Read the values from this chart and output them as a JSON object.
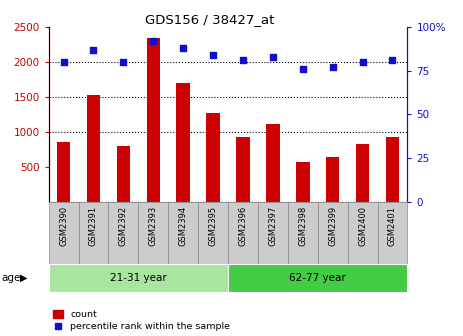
{
  "title": "GDS156 / 38427_at",
  "samples": [
    "GSM2390",
    "GSM2391",
    "GSM2392",
    "GSM2393",
    "GSM2394",
    "GSM2395",
    "GSM2396",
    "GSM2397",
    "GSM2398",
    "GSM2399",
    "GSM2400",
    "GSM2401"
  ],
  "counts": [
    850,
    1520,
    800,
    2340,
    1700,
    1270,
    920,
    1110,
    560,
    640,
    820,
    920
  ],
  "percentiles": [
    80,
    87,
    80,
    92,
    88,
    84,
    81,
    83,
    76,
    77,
    80,
    81
  ],
  "groups": [
    {
      "label": "21-31 year",
      "start": 0,
      "end": 6,
      "color": "#a8e6a0"
    },
    {
      "label": "62-77 year",
      "start": 6,
      "end": 12,
      "color": "#44cc44"
    }
  ],
  "bar_color": "#cc0000",
  "dot_color": "#1010cc",
  "left_axis_color": "#cc0000",
  "right_axis_color": "#1010cc",
  "ylim_left": [
    0,
    2500
  ],
  "ylim_right": [
    0,
    100
  ],
  "yticks_left": [
    500,
    1000,
    1500,
    2000,
    2500
  ],
  "yticks_right": [
    0,
    25,
    50,
    75,
    100
  ],
  "grid_values": [
    1000,
    1500,
    2000
  ],
  "background_color": "#ffffff",
  "age_label": "age",
  "legend_count": "count",
  "legend_percentile": "percentile rank within the sample",
  "label_box_color": "#cccccc",
  "label_box_edge": "#888888"
}
